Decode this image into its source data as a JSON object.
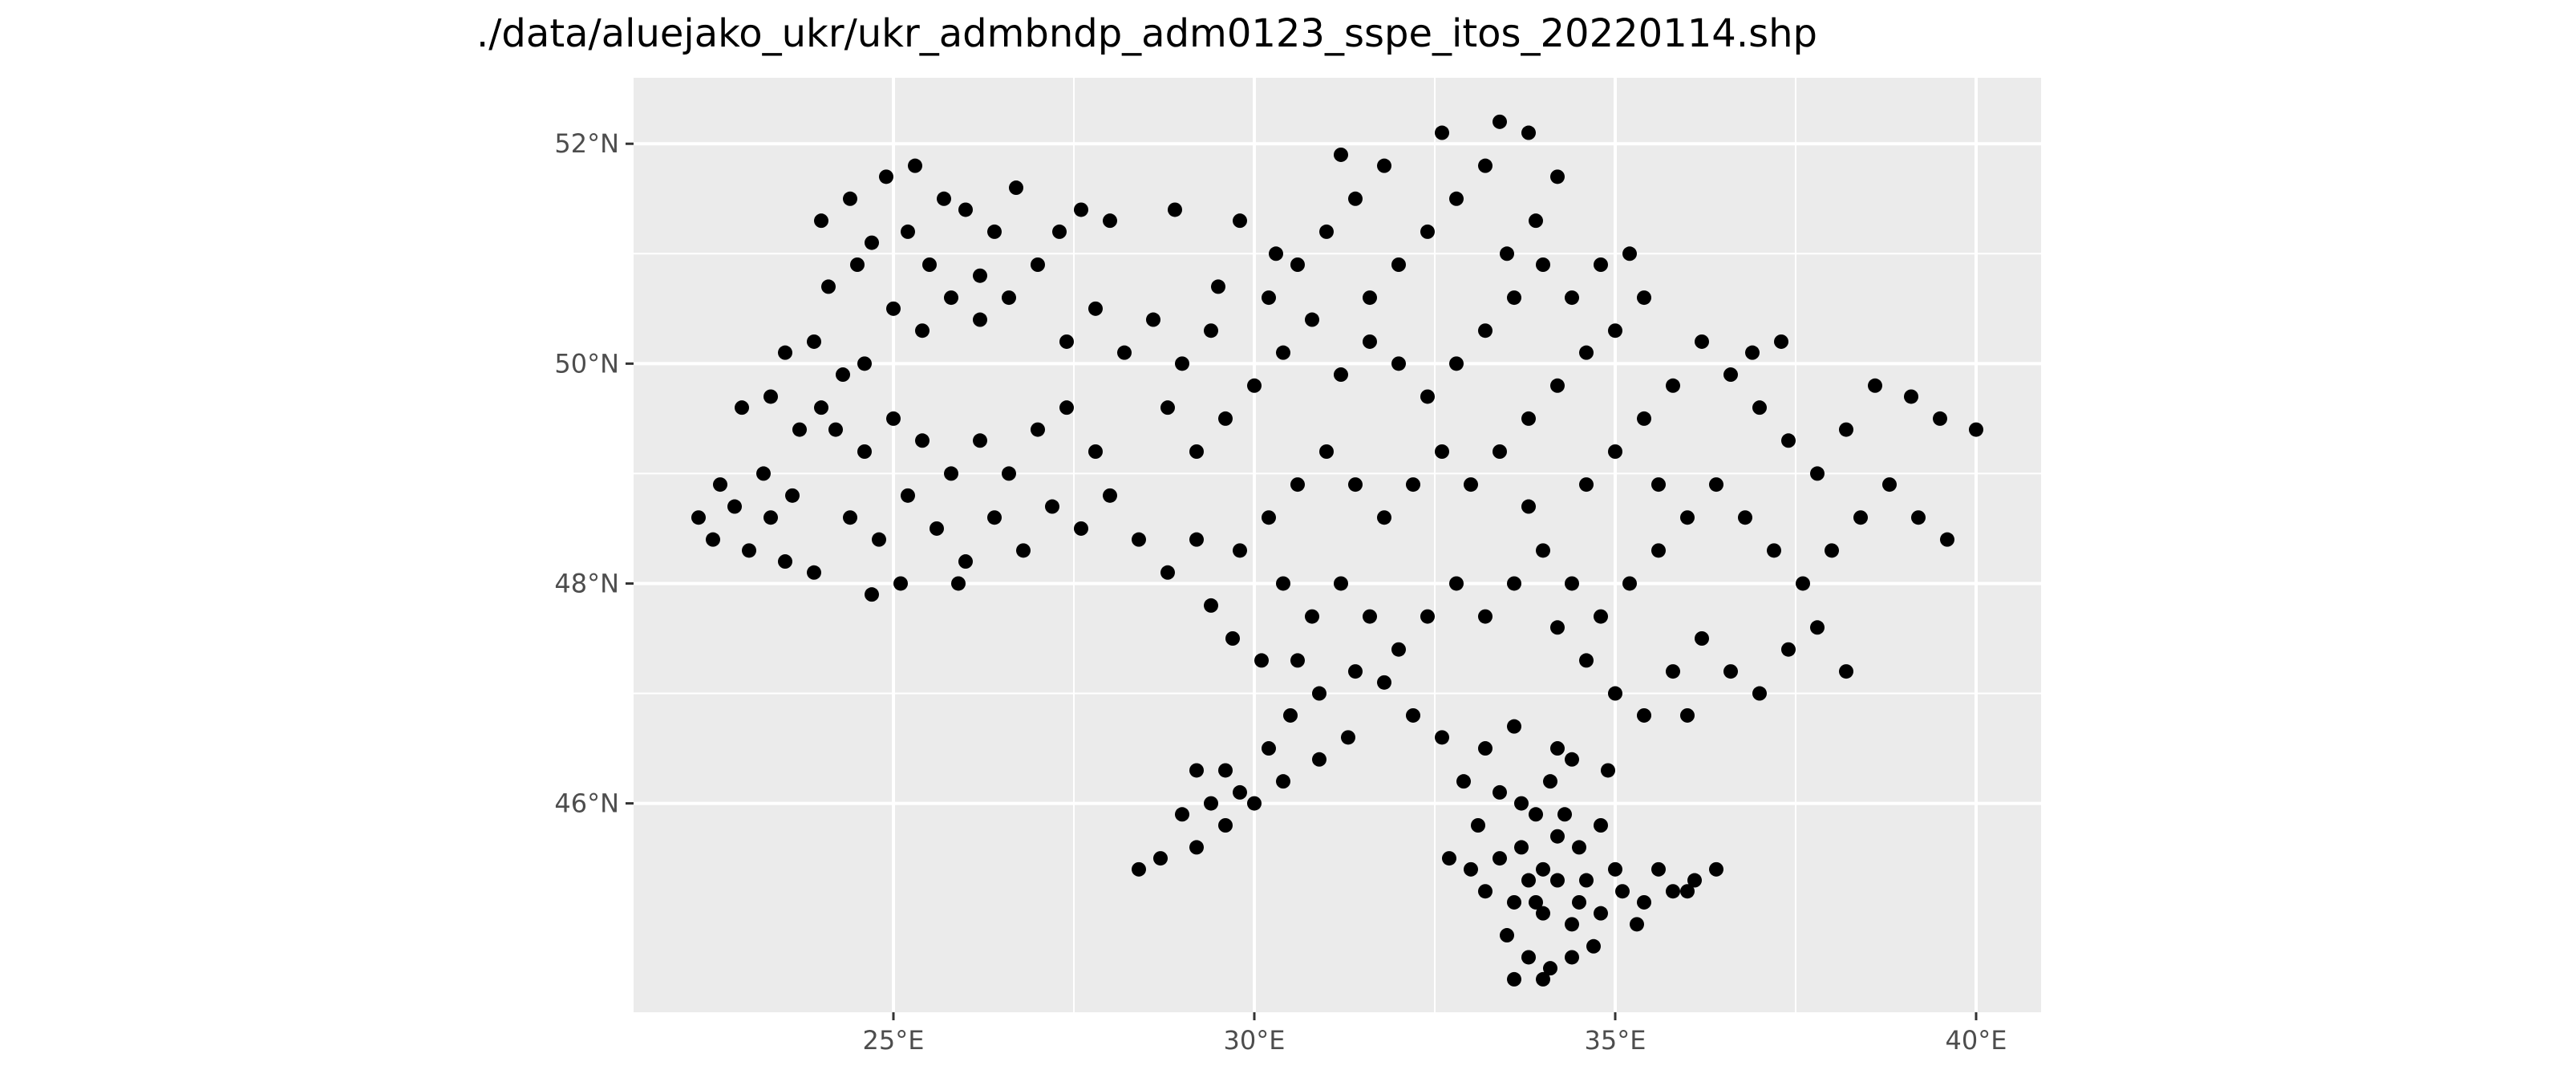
{
  "chart_data": {
    "type": "scatter",
    "title": "./data/aluejako_ukr/ukr_admbndp_adm0123_sspe_itos_20220114.shp",
    "xlabel": "",
    "ylabel": "",
    "xlim": [
      21.4,
      40.9
    ],
    "ylim": [
      44.1,
      52.6
    ],
    "x_ticks": [
      25,
      30,
      35,
      40
    ],
    "x_tick_labels": [
      "25°E",
      "30°E",
      "35°E",
      "40°E"
    ],
    "y_ticks": [
      46,
      48,
      50,
      52
    ],
    "y_tick_labels": [
      "46°N",
      "48°N",
      "50°N",
      "52°N"
    ],
    "grid": true,
    "legend": "none",
    "colors": {
      "panel": "#ebebeb",
      "grid": "#ffffff",
      "point": "#000000",
      "tick_text": "#4d4d4d",
      "tick_mark": "#333333"
    },
    "series": [
      {
        "points": [
          [
            22.3,
            48.6
          ],
          [
            22.5,
            48.4
          ],
          [
            22.8,
            48.7
          ],
          [
            22.6,
            48.9
          ],
          [
            23.0,
            48.3
          ],
          [
            23.3,
            48.6
          ],
          [
            23.5,
            48.2
          ],
          [
            23.2,
            49.0
          ],
          [
            23.6,
            48.8
          ],
          [
            23.9,
            48.1
          ],
          [
            22.9,
            49.6
          ],
          [
            23.3,
            49.7
          ],
          [
            23.7,
            49.4
          ],
          [
            24.0,
            49.6
          ],
          [
            23.5,
            50.1
          ],
          [
            23.9,
            50.2
          ],
          [
            24.3,
            49.9
          ],
          [
            24.6,
            50.0
          ],
          [
            24.1,
            50.7
          ],
          [
            24.5,
            50.9
          ],
          [
            24.0,
            51.3
          ],
          [
            24.4,
            51.5
          ],
          [
            24.7,
            51.1
          ],
          [
            24.9,
            51.7
          ],
          [
            25.3,
            51.8
          ],
          [
            25.7,
            51.5
          ],
          [
            25.2,
            51.2
          ],
          [
            25.5,
            50.9
          ],
          [
            25.0,
            50.5
          ],
          [
            25.4,
            50.3
          ],
          [
            25.8,
            50.6
          ],
          [
            26.2,
            50.8
          ],
          [
            26.4,
            51.2
          ],
          [
            26.7,
            51.6
          ],
          [
            26.0,
            51.4
          ],
          [
            26.2,
            50.4
          ],
          [
            26.6,
            50.6
          ],
          [
            27.0,
            50.9
          ],
          [
            27.3,
            51.2
          ],
          [
            27.6,
            51.4
          ],
          [
            24.2,
            49.4
          ],
          [
            24.6,
            49.2
          ],
          [
            25.0,
            49.5
          ],
          [
            25.4,
            49.3
          ],
          [
            25.8,
            49.0
          ],
          [
            26.2,
            49.3
          ],
          [
            26.6,
            49.0
          ],
          [
            27.0,
            49.4
          ],
          [
            27.4,
            49.6
          ],
          [
            27.8,
            49.2
          ],
          [
            24.4,
            48.6
          ],
          [
            24.8,
            48.4
          ],
          [
            25.2,
            48.8
          ],
          [
            25.6,
            48.5
          ],
          [
            26.0,
            48.2
          ],
          [
            26.4,
            48.6
          ],
          [
            26.8,
            48.3
          ],
          [
            25.1,
            48.0
          ],
          [
            24.7,
            47.9
          ],
          [
            25.9,
            48.0
          ],
          [
            27.2,
            48.7
          ],
          [
            27.6,
            48.5
          ],
          [
            28.0,
            48.8
          ],
          [
            28.4,
            48.4
          ],
          [
            28.8,
            48.1
          ],
          [
            29.2,
            48.4
          ],
          [
            27.4,
            50.2
          ],
          [
            27.8,
            50.5
          ],
          [
            28.2,
            50.1
          ],
          [
            28.6,
            50.4
          ],
          [
            29.0,
            50.0
          ],
          [
            29.4,
            50.3
          ],
          [
            28.8,
            49.6
          ],
          [
            29.2,
            49.2
          ],
          [
            29.6,
            49.5
          ],
          [
            30.0,
            49.8
          ],
          [
            30.4,
            50.1
          ],
          [
            30.8,
            50.4
          ],
          [
            30.2,
            50.6
          ],
          [
            30.6,
            50.9
          ],
          [
            31.0,
            51.2
          ],
          [
            31.4,
            51.5
          ],
          [
            31.8,
            51.8
          ],
          [
            31.2,
            51.9
          ],
          [
            32.6,
            52.1
          ],
          [
            33.4,
            52.2
          ],
          [
            33.8,
            52.1
          ],
          [
            34.2,
            51.7
          ],
          [
            33.9,
            51.3
          ],
          [
            33.5,
            51.0
          ],
          [
            30.3,
            51.0
          ],
          [
            29.8,
            51.3
          ],
          [
            28.9,
            51.4
          ],
          [
            28.0,
            51.3
          ],
          [
            29.5,
            50.7
          ],
          [
            31.6,
            50.6
          ],
          [
            32.0,
            50.9
          ],
          [
            32.4,
            51.2
          ],
          [
            32.8,
            51.5
          ],
          [
            33.2,
            51.8
          ],
          [
            31.2,
            49.9
          ],
          [
            31.6,
            50.2
          ],
          [
            32.0,
            50.0
          ],
          [
            32.4,
            49.7
          ],
          [
            32.8,
            50.0
          ],
          [
            33.2,
            50.3
          ],
          [
            33.6,
            50.6
          ],
          [
            34.0,
            50.9
          ],
          [
            34.4,
            50.6
          ],
          [
            34.8,
            50.9
          ],
          [
            35.2,
            51.0
          ],
          [
            35.4,
            50.6
          ],
          [
            35.0,
            50.3
          ],
          [
            34.6,
            50.1
          ],
          [
            34.2,
            49.8
          ],
          [
            33.8,
            49.5
          ],
          [
            33.4,
            49.2
          ],
          [
            33.0,
            48.9
          ],
          [
            32.6,
            49.2
          ],
          [
            32.2,
            48.9
          ],
          [
            31.8,
            48.6
          ],
          [
            31.4,
            48.9
          ],
          [
            31.0,
            49.2
          ],
          [
            30.6,
            48.9
          ],
          [
            30.2,
            48.6
          ],
          [
            29.8,
            48.3
          ],
          [
            30.4,
            48.0
          ],
          [
            30.8,
            47.7
          ],
          [
            31.2,
            48.0
          ],
          [
            31.6,
            47.7
          ],
          [
            32.0,
            47.4
          ],
          [
            32.4,
            47.7
          ],
          [
            32.8,
            48.0
          ],
          [
            33.2,
            47.7
          ],
          [
            33.6,
            48.0
          ],
          [
            34.0,
            48.3
          ],
          [
            34.4,
            48.0
          ],
          [
            34.8,
            47.7
          ],
          [
            35.2,
            48.0
          ],
          [
            35.6,
            48.3
          ],
          [
            36.0,
            48.6
          ],
          [
            36.4,
            48.9
          ],
          [
            36.8,
            48.6
          ],
          [
            37.2,
            48.3
          ],
          [
            37.6,
            48.0
          ],
          [
            38.0,
            48.3
          ],
          [
            38.4,
            48.6
          ],
          [
            38.8,
            48.9
          ],
          [
            39.2,
            48.6
          ],
          [
            39.6,
            48.4
          ],
          [
            39.5,
            49.5
          ],
          [
            40.0,
            49.4
          ],
          [
            39.1,
            49.7
          ],
          [
            38.6,
            49.8
          ],
          [
            38.2,
            49.4
          ],
          [
            37.8,
            49.0
          ],
          [
            37.4,
            49.3
          ],
          [
            37.0,
            49.6
          ],
          [
            36.6,
            49.9
          ],
          [
            36.2,
            50.2
          ],
          [
            35.8,
            49.8
          ],
          [
            35.4,
            49.5
          ],
          [
            35.0,
            49.2
          ],
          [
            34.6,
            48.9
          ],
          [
            36.9,
            50.1
          ],
          [
            37.3,
            50.2
          ],
          [
            35.6,
            48.9
          ],
          [
            33.8,
            48.7
          ],
          [
            34.2,
            47.6
          ],
          [
            34.6,
            47.3
          ],
          [
            35.0,
            47.0
          ],
          [
            35.4,
            46.8
          ],
          [
            35.8,
            47.2
          ],
          [
            36.2,
            47.5
          ],
          [
            36.6,
            47.2
          ],
          [
            37.0,
            47.0
          ],
          [
            37.4,
            47.4
          ],
          [
            37.8,
            47.6
          ],
          [
            38.2,
            47.2
          ],
          [
            36.0,
            46.8
          ],
          [
            34.9,
            46.3
          ],
          [
            34.2,
            46.5
          ],
          [
            33.6,
            46.7
          ],
          [
            33.2,
            46.5
          ],
          [
            32.6,
            46.6
          ],
          [
            32.2,
            46.8
          ],
          [
            31.8,
            47.1
          ],
          [
            31.4,
            47.2
          ],
          [
            30.9,
            47.0
          ],
          [
            30.5,
            46.8
          ],
          [
            30.2,
            46.5
          ],
          [
            29.8,
            46.1
          ],
          [
            30.4,
            46.2
          ],
          [
            29.4,
            46.0
          ],
          [
            29.0,
            45.9
          ],
          [
            28.7,
            45.5
          ],
          [
            28.4,
            45.4
          ],
          [
            29.2,
            45.6
          ],
          [
            29.6,
            45.8
          ],
          [
            30.0,
            46.0
          ],
          [
            29.6,
            46.3
          ],
          [
            29.2,
            46.3
          ],
          [
            30.6,
            47.3
          ],
          [
            30.1,
            47.3
          ],
          [
            29.7,
            47.5
          ],
          [
            29.4,
            47.8
          ],
          [
            30.9,
            46.4
          ],
          [
            31.3,
            46.6
          ],
          [
            32.9,
            46.2
          ],
          [
            33.4,
            46.1
          ],
          [
            33.7,
            46.0
          ],
          [
            34.1,
            46.2
          ],
          [
            34.4,
            46.4
          ],
          [
            33.9,
            45.9
          ],
          [
            34.2,
            45.7
          ],
          [
            34.5,
            45.6
          ],
          [
            33.7,
            45.6
          ],
          [
            33.4,
            45.5
          ],
          [
            33.0,
            45.4
          ],
          [
            32.7,
            45.5
          ],
          [
            33.2,
            45.2
          ],
          [
            33.6,
            45.1
          ],
          [
            34.0,
            45.0
          ],
          [
            34.4,
            44.9
          ],
          [
            34.8,
            45.0
          ],
          [
            35.1,
            45.2
          ],
          [
            35.4,
            45.1
          ],
          [
            35.8,
            45.2
          ],
          [
            36.1,
            45.3
          ],
          [
            36.4,
            45.4
          ],
          [
            35.6,
            45.4
          ],
          [
            35.0,
            45.4
          ],
          [
            34.6,
            45.3
          ],
          [
            34.2,
            45.3
          ],
          [
            33.8,
            45.3
          ],
          [
            33.5,
            44.8
          ],
          [
            33.8,
            44.6
          ],
          [
            34.1,
            44.5
          ],
          [
            34.4,
            44.6
          ],
          [
            33.6,
            44.4
          ],
          [
            34.0,
            44.4
          ],
          [
            34.7,
            44.7
          ],
          [
            35.3,
            44.9
          ],
          [
            34.3,
            45.9
          ],
          [
            34.8,
            45.8
          ],
          [
            33.1,
            45.8
          ],
          [
            36.0,
            45.2
          ],
          [
            34.0,
            45.4
          ],
          [
            33.9,
            45.1
          ],
          [
            34.5,
            45.1
          ]
        ]
      }
    ]
  }
}
